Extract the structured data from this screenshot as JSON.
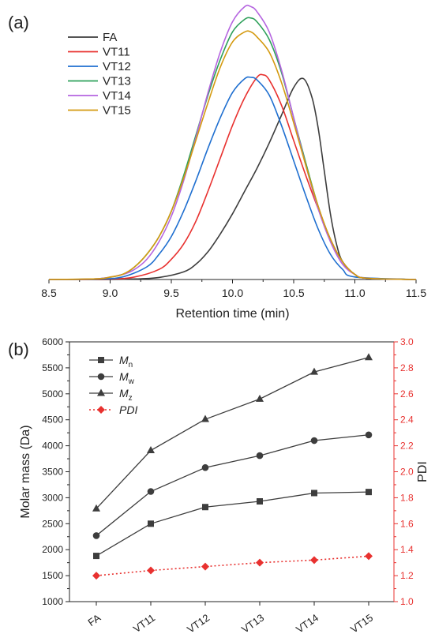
{
  "panels": {
    "a_label": "(a)",
    "b_label": "(b)"
  },
  "chart_data": [
    {
      "type": "line",
      "panel": "(a)",
      "xlabel": "Retention time (min)",
      "ylabel": "",
      "xlim": [
        8.5,
        11.5
      ],
      "ylim": [
        0,
        1.05
      ],
      "xticks": [
        "8.5",
        "9.0",
        "9.5",
        "10.0",
        "10.5",
        "11.0",
        "11.5"
      ],
      "y_axis_visible": false,
      "grid": false,
      "legend_position": "top-left",
      "series": [
        {
          "name": "FA",
          "color": "#3d3d3d",
          "points": [
            [
              8.5,
              0
            ],
            [
              9.0,
              0
            ],
            [
              9.2,
              0.002
            ],
            [
              9.4,
              0.008
            ],
            [
              9.6,
              0.03
            ],
            [
              9.7,
              0.06
            ],
            [
              9.8,
              0.11
            ],
            [
              9.9,
              0.18
            ],
            [
              10.0,
              0.26
            ],
            [
              10.1,
              0.35
            ],
            [
              10.2,
              0.44
            ],
            [
              10.3,
              0.54
            ],
            [
              10.4,
              0.65
            ],
            [
              10.5,
              0.76
            ],
            [
              10.58,
              0.795
            ],
            [
              10.65,
              0.72
            ],
            [
              10.7,
              0.6
            ],
            [
              10.75,
              0.43
            ],
            [
              10.8,
              0.26
            ],
            [
              10.85,
              0.14
            ],
            [
              10.9,
              0.07
            ],
            [
              11.0,
              0.02
            ],
            [
              11.1,
              0.005
            ],
            [
              11.5,
              0
            ]
          ]
        },
        {
          "name": "VT11",
          "color": "#e8312f",
          "points": [
            [
              8.5,
              0
            ],
            [
              9.0,
              0.002
            ],
            [
              9.2,
              0.01
            ],
            [
              9.4,
              0.04
            ],
            [
              9.5,
              0.08
            ],
            [
              9.6,
              0.14
            ],
            [
              9.7,
              0.23
            ],
            [
              9.8,
              0.35
            ],
            [
              9.9,
              0.48
            ],
            [
              10.0,
              0.61
            ],
            [
              10.1,
              0.72
            ],
            [
              10.2,
              0.8
            ],
            [
              10.25,
              0.81
            ],
            [
              10.3,
              0.79
            ],
            [
              10.4,
              0.69
            ],
            [
              10.5,
              0.55
            ],
            [
              10.6,
              0.41
            ],
            [
              10.7,
              0.28
            ],
            [
              10.8,
              0.16
            ],
            [
              10.9,
              0.07
            ],
            [
              11.0,
              0.02
            ],
            [
              11.1,
              0.005
            ],
            [
              11.5,
              0
            ]
          ]
        },
        {
          "name": "VT12",
          "color": "#1f6fd0",
          "points": [
            [
              8.5,
              0
            ],
            [
              8.9,
              0.002
            ],
            [
              9.1,
              0.01
            ],
            [
              9.3,
              0.05
            ],
            [
              9.4,
              0.1
            ],
            [
              9.5,
              0.17
            ],
            [
              9.6,
              0.27
            ],
            [
              9.7,
              0.39
            ],
            [
              9.8,
              0.52
            ],
            [
              9.9,
              0.64
            ],
            [
              10.0,
              0.74
            ],
            [
              10.1,
              0.795
            ],
            [
              10.15,
              0.8
            ],
            [
              10.2,
              0.79
            ],
            [
              10.3,
              0.73
            ],
            [
              10.4,
              0.61
            ],
            [
              10.5,
              0.47
            ],
            [
              10.6,
              0.33
            ],
            [
              10.7,
              0.2
            ],
            [
              10.8,
              0.1
            ],
            [
              10.9,
              0.04
            ],
            [
              11.0,
              0.01
            ],
            [
              11.5,
              0
            ]
          ]
        },
        {
          "name": "VT13",
          "color": "#2ea05a",
          "points": [
            [
              8.5,
              0
            ],
            [
              8.9,
              0.003
            ],
            [
              9.1,
              0.02
            ],
            [
              9.2,
              0.05
            ],
            [
              9.3,
              0.1
            ],
            [
              9.4,
              0.17
            ],
            [
              9.5,
              0.27
            ],
            [
              9.6,
              0.41
            ],
            [
              9.7,
              0.57
            ],
            [
              9.8,
              0.73
            ],
            [
              9.9,
              0.87
            ],
            [
              10.0,
              0.98
            ],
            [
              10.1,
              1.03
            ],
            [
              10.15,
              1.035
            ],
            [
              10.2,
              1.02
            ],
            [
              10.3,
              0.95
            ],
            [
              10.4,
              0.82
            ],
            [
              10.5,
              0.64
            ],
            [
              10.6,
              0.46
            ],
            [
              10.7,
              0.29
            ],
            [
              10.8,
              0.16
            ],
            [
              10.9,
              0.07
            ],
            [
              11.0,
              0.02
            ],
            [
              11.1,
              0.005
            ],
            [
              11.5,
              0
            ]
          ]
        },
        {
          "name": "VT14",
          "color": "#b565e0",
          "points": [
            [
              8.5,
              0
            ],
            [
              8.9,
              0.003
            ],
            [
              9.1,
              0.02
            ],
            [
              9.2,
              0.04
            ],
            [
              9.3,
              0.08
            ],
            [
              9.4,
              0.15
            ],
            [
              9.5,
              0.25
            ],
            [
              9.6,
              0.39
            ],
            [
              9.7,
              0.56
            ],
            [
              9.8,
              0.74
            ],
            [
              9.9,
              0.9
            ],
            [
              10.0,
              1.02
            ],
            [
              10.1,
              1.08
            ],
            [
              10.15,
              1.08
            ],
            [
              10.2,
              1.06
            ],
            [
              10.3,
              0.98
            ],
            [
              10.4,
              0.83
            ],
            [
              10.5,
              0.64
            ],
            [
              10.6,
              0.45
            ],
            [
              10.7,
              0.28
            ],
            [
              10.8,
              0.15
            ],
            [
              10.9,
              0.06
            ],
            [
              11.0,
              0.02
            ],
            [
              11.1,
              0.005
            ],
            [
              11.5,
              0
            ]
          ]
        },
        {
          "name": "VT15",
          "color": "#d49a10",
          "points": [
            [
              8.5,
              0
            ],
            [
              8.9,
              0.003
            ],
            [
              9.0,
              0.01
            ],
            [
              9.1,
              0.02
            ],
            [
              9.2,
              0.05
            ],
            [
              9.3,
              0.1
            ],
            [
              9.4,
              0.17
            ],
            [
              9.5,
              0.27
            ],
            [
              9.6,
              0.4
            ],
            [
              9.7,
              0.55
            ],
            [
              9.8,
              0.7
            ],
            [
              9.9,
              0.84
            ],
            [
              10.0,
              0.94
            ],
            [
              10.1,
              0.98
            ],
            [
              10.15,
              0.98
            ],
            [
              10.2,
              0.96
            ],
            [
              10.3,
              0.9
            ],
            [
              10.4,
              0.78
            ],
            [
              10.5,
              0.62
            ],
            [
              10.6,
              0.45
            ],
            [
              10.7,
              0.29
            ],
            [
              10.8,
              0.16
            ],
            [
              10.9,
              0.07
            ],
            [
              11.0,
              0.02
            ],
            [
              11.1,
              0.005
            ],
            [
              11.5,
              0
            ]
          ]
        }
      ]
    },
    {
      "type": "line",
      "panel": "(b)",
      "categories": [
        "FA",
        "VT11",
        "VT12",
        "VT13",
        "VT14",
        "VT15"
      ],
      "ylabel": "Molar mass (Da)",
      "ylim": [
        1000,
        6000
      ],
      "yticks": [
        "1000",
        "1500",
        "2000",
        "2500",
        "3000",
        "3500",
        "4000",
        "4500",
        "5000",
        "5500",
        "6000"
      ],
      "y2label": "PDI",
      "y2lim": [
        1.0,
        3.0
      ],
      "y2ticks": [
        "1.0",
        "1.2",
        "1.4",
        "1.6",
        "1.8",
        "2.0",
        "2.2",
        "2.4",
        "2.6",
        "2.8",
        "3.0"
      ],
      "y2_color": "#e8312f",
      "grid": false,
      "legend_position": "top-left",
      "series": [
        {
          "name": "M",
          "subscript": "n",
          "italic": true,
          "axis": "left",
          "marker": "square",
          "color": "#3d3d3d",
          "style": "solid",
          "values": [
            1880,
            2500,
            2820,
            2930,
            3090,
            3110
          ]
        },
        {
          "name": "M",
          "subscript": "w",
          "italic": true,
          "axis": "left",
          "marker": "circle",
          "color": "#3d3d3d",
          "style": "solid",
          "values": [
            2270,
            3120,
            3580,
            3810,
            4100,
            4210
          ]
        },
        {
          "name": "M",
          "subscript": "z",
          "italic": true,
          "axis": "left",
          "marker": "triangle",
          "color": "#3d3d3d",
          "style": "solid",
          "values": [
            2790,
            3910,
            4510,
            4900,
            5420,
            5700
          ]
        },
        {
          "name": "PDI",
          "subscript": "",
          "italic": true,
          "axis": "right",
          "marker": "diamond",
          "color": "#e8312f",
          "style": "dotted",
          "values": [
            1.2,
            1.24,
            1.27,
            1.3,
            1.32,
            1.35
          ]
        }
      ]
    }
  ]
}
